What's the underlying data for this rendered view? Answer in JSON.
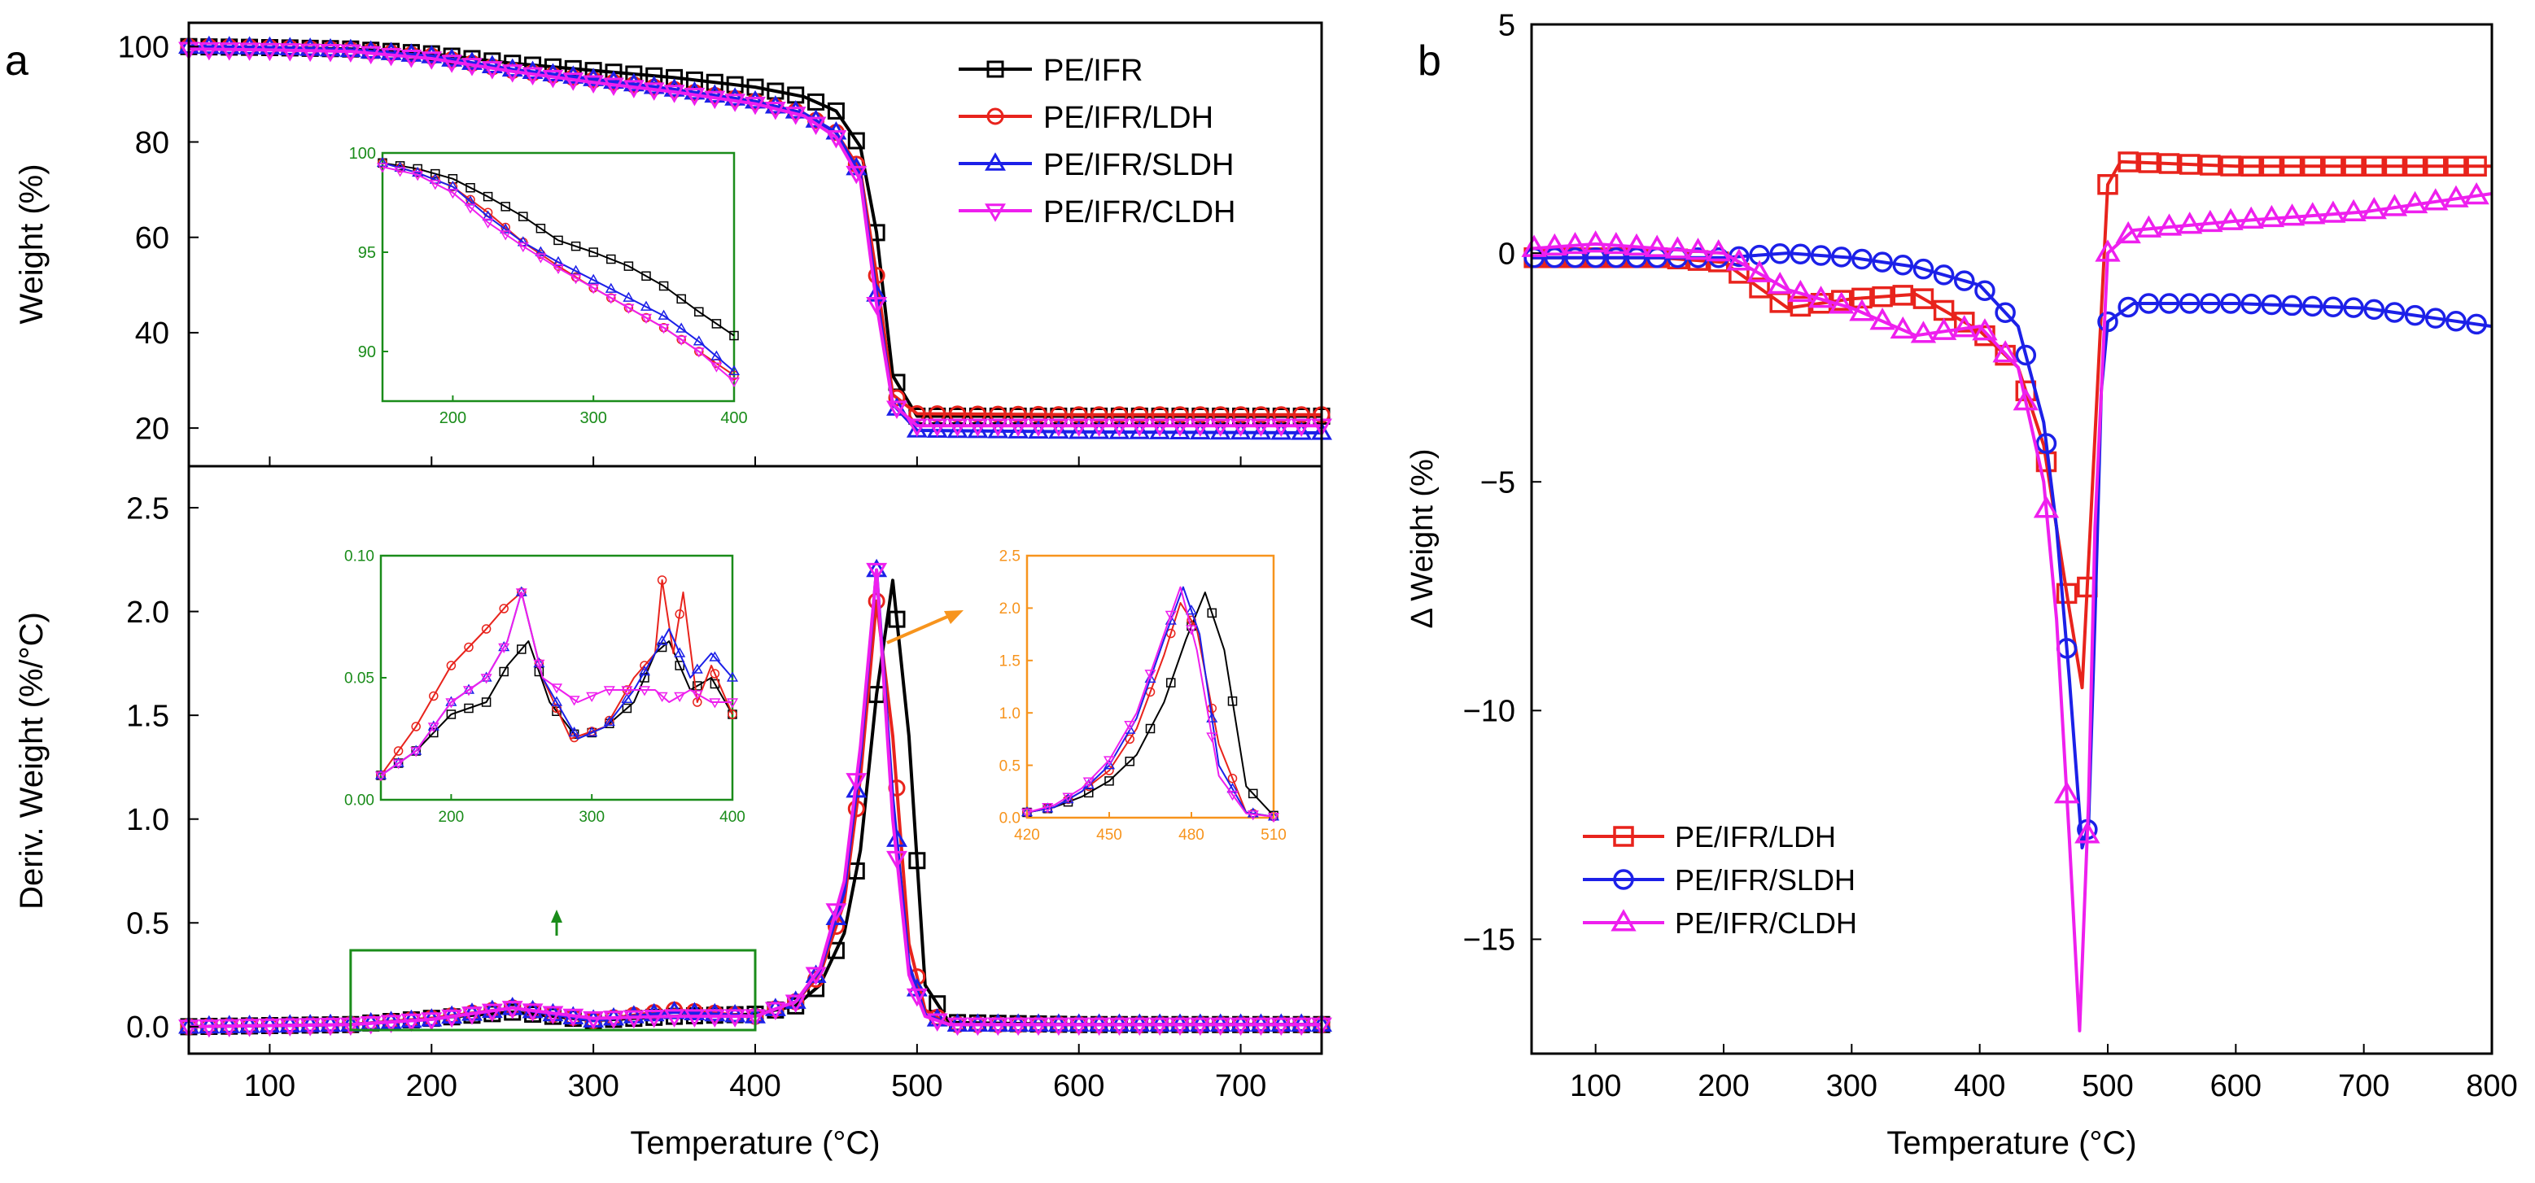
{
  "figure": {
    "panel_a_letter": "a",
    "panel_b_letter": "b",
    "colors": {
      "PE/IFR": "#000000",
      "PE/IFR/LDH": "#e8231c",
      "PE/IFR/SLDH": "#1c20e8",
      "PE/IFR/CLDH": "#ee1fee",
      "inset_green": "#1a8c1a",
      "inset_orange": "#f7941d"
    }
  },
  "chart_data": [
    {
      "id": "a_top",
      "type": "line",
      "title": "",
      "xlabel": "Temperature (°C)",
      "ylabel": "Weight (%)",
      "xlim": [
        50,
        750
      ],
      "ylim": [
        12,
        105
      ],
      "yticks": [
        "20",
        "40",
        "60",
        "80",
        "100"
      ],
      "legend": [
        "PE/IFR",
        "PE/IFR/LDH",
        "PE/IFR/SLDH",
        "PE/IFR/CLDH"
      ],
      "legend_position": "top-right",
      "series": [
        {
          "name": "PE/IFR",
          "marker": "square",
          "x": [
            50,
            100,
            150,
            200,
            250,
            300,
            350,
            400,
            430,
            450,
            465,
            475,
            485,
            500,
            600,
            750
          ],
          "y": [
            100,
            99.8,
            99.5,
            98.5,
            96.5,
            95,
            93.5,
            91.5,
            89.5,
            86.5,
            79,
            61,
            31,
            22.5,
            22.5,
            22.5
          ]
        },
        {
          "name": "PE/IFR/LDH",
          "marker": "circle",
          "x": [
            50,
            100,
            150,
            200,
            250,
            300,
            350,
            400,
            430,
            450,
            465,
            475,
            485,
            500,
            600,
            750
          ],
          "y": [
            100,
            99.8,
            99.3,
            98,
            95,
            93,
            91,
            88.5,
            86,
            82,
            74,
            52,
            27,
            23,
            22.8,
            22.8
          ]
        },
        {
          "name": "PE/IFR/SLDH",
          "marker": "triangle-up",
          "x": [
            50,
            100,
            150,
            200,
            250,
            300,
            350,
            400,
            430,
            450,
            465,
            475,
            485,
            500,
            600,
            750
          ],
          "y": [
            100,
            99.8,
            99.3,
            98,
            95.2,
            93.2,
            91,
            88.5,
            86,
            82,
            73,
            48,
            25,
            19.5,
            19.2,
            19
          ]
        },
        {
          "name": "PE/IFR/CLDH",
          "marker": "triangle-down",
          "x": [
            50,
            100,
            150,
            200,
            250,
            300,
            350,
            400,
            430,
            450,
            465,
            475,
            485,
            500,
            600,
            750
          ],
          "y": [
            99.5,
            99.3,
            99,
            97.5,
            94.8,
            92.5,
            90.5,
            88,
            85.5,
            81,
            72,
            46,
            25,
            20.5,
            20.5,
            20.5
          ]
        }
      ],
      "inset": {
        "xlim": [
          150,
          400
        ],
        "ylim": [
          87.5,
          100
        ],
        "xticks": [
          "200",
          "300",
          "400"
        ],
        "yticks": [
          "90",
          "95",
          "100"
        ],
        "series": [
          {
            "name": "PE/IFR",
            "x": [
              150,
              175,
              200,
              225,
              250,
              275,
              300,
              325,
              350,
              375,
              400
            ],
            "y": [
              99.5,
              99.2,
              98.7,
              97.8,
              96.8,
              95.6,
              95,
              94.3,
              93.3,
              92,
              90.8
            ]
          },
          {
            "name": "PE/IFR/LDH",
            "x": [
              150,
              175,
              200,
              225,
              250,
              275,
              300,
              325,
              350,
              375,
              400
            ],
            "y": [
              99.5,
              99,
              98.3,
              97,
              95.5,
              94.3,
              93.2,
              92.2,
              91.2,
              90,
              88.8
            ]
          },
          {
            "name": "PE/IFR/SLDH",
            "x": [
              150,
              175,
              200,
              225,
              250,
              275,
              300,
              325,
              350,
              375,
              400
            ],
            "y": [
              99.5,
              99,
              98.3,
              96.8,
              95.5,
              94.5,
              93.6,
              92.7,
              91.8,
              90.5,
              89
            ]
          },
          {
            "name": "PE/IFR/CLDH",
            "x": [
              150,
              175,
              200,
              225,
              250,
              275,
              300,
              325,
              350,
              375,
              400
            ],
            "y": [
              99.3,
              98.9,
              98,
              96.5,
              95.3,
              94.2,
              93.2,
              92.2,
              91.2,
              90,
              88.5
            ]
          }
        ]
      }
    },
    {
      "id": "a_bottom",
      "type": "line",
      "title": "",
      "xlabel": "Temperature (°C)",
      "ylabel": "Deriv. Weight (%/°C)",
      "xlim": [
        50,
        750
      ],
      "ylim": [
        -0.13,
        2.7
      ],
      "xticks": [
        "100",
        "200",
        "300",
        "400",
        "500",
        "600",
        "700"
      ],
      "yticks": [
        "0.0",
        "0.5",
        "1.0",
        "1.5",
        "2.0",
        "2.5"
      ],
      "highlight_box_x": [
        150,
        400
      ],
      "series": [
        {
          "name": "PE/IFR",
          "marker": "square",
          "x": [
            50,
            150,
            200,
            250,
            300,
            350,
            400,
            425,
            440,
            455,
            465,
            475,
            485,
            495,
            505,
            520,
            600,
            750
          ],
          "y": [
            0,
            0.01,
            0.04,
            0.07,
            0.03,
            0.05,
            0.06,
            0.1,
            0.2,
            0.45,
            0.85,
            1.6,
            2.15,
            1.4,
            0.2,
            0.02,
            0.01,
            0.01
          ]
        },
        {
          "name": "PE/IFR/LDH",
          "marker": "circle",
          "x": [
            50,
            150,
            200,
            250,
            300,
            350,
            400,
            425,
            440,
            455,
            465,
            475,
            485,
            495,
            505,
            520,
            600,
            750
          ],
          "y": [
            0,
            0.01,
            0.04,
            0.09,
            0.03,
            0.08,
            0.05,
            0.12,
            0.25,
            0.6,
            1.2,
            2.05,
            1.4,
            0.4,
            0.08,
            0.01,
            0.01,
            0.01
          ]
        },
        {
          "name": "PE/IFR/SLDH",
          "marker": "triangle-up",
          "x": [
            50,
            150,
            200,
            250,
            300,
            350,
            400,
            425,
            440,
            455,
            465,
            475,
            485,
            495,
            505,
            520,
            600,
            750
          ],
          "y": [
            0,
            0.01,
            0.035,
            0.09,
            0.03,
            0.07,
            0.05,
            0.12,
            0.27,
            0.65,
            1.3,
            2.2,
            1.1,
            0.3,
            0.06,
            0.01,
            0.01,
            0.01
          ]
        },
        {
          "name": "PE/IFR/CLDH",
          "marker": "triangle-down",
          "x": [
            50,
            150,
            200,
            250,
            300,
            350,
            400,
            425,
            440,
            455,
            465,
            475,
            485,
            495,
            505,
            520,
            600,
            750
          ],
          "y": [
            0,
            0.01,
            0.035,
            0.09,
            0.04,
            0.05,
            0.05,
            0.12,
            0.28,
            0.7,
            1.35,
            2.2,
            1.0,
            0.25,
            0.05,
            0.01,
            0.01,
            0.01
          ]
        }
      ],
      "inset_left": {
        "xlim": [
          150,
          400
        ],
        "ylim": [
          0,
          0.1
        ],
        "xticks": [
          "200",
          "300",
          "400"
        ],
        "yticks": [
          "0.00",
          "0.05",
          "0.10"
        ],
        "series": [
          {
            "name": "PE/IFR",
            "x": [
              150,
              175,
              200,
              225,
              240,
              255,
              270,
              290,
              310,
              330,
              345,
              355,
              370,
              385,
              400
            ],
            "y": [
              0.01,
              0.02,
              0.035,
              0.04,
              0.055,
              0.065,
              0.04,
              0.025,
              0.03,
              0.04,
              0.06,
              0.065,
              0.045,
              0.05,
              0.035
            ]
          },
          {
            "name": "PE/IFR/LDH",
            "x": [
              150,
              175,
              200,
              225,
              240,
              250,
              265,
              285,
              310,
              330,
              345,
              350,
              358,
              365,
              375,
              385,
              400
            ],
            "y": [
              0.01,
              0.03,
              0.055,
              0.07,
              0.08,
              0.085,
              0.05,
              0.025,
              0.03,
              0.05,
              0.06,
              0.09,
              0.06,
              0.085,
              0.04,
              0.055,
              0.035
            ]
          },
          {
            "name": "PE/IFR/SLDH",
            "x": [
              150,
              175,
              200,
              225,
              240,
              250,
              265,
              290,
              310,
              330,
              345,
              355,
              370,
              385,
              400
            ],
            "y": [
              0.01,
              0.02,
              0.04,
              0.05,
              0.065,
              0.085,
              0.05,
              0.025,
              0.03,
              0.045,
              0.06,
              0.07,
              0.05,
              0.06,
              0.05
            ]
          },
          {
            "name": "PE/IFR/CLDH",
            "x": [
              150,
              175,
              200,
              225,
              240,
              250,
              265,
              290,
              310,
              330,
              345,
              355,
              370,
              385,
              400
            ],
            "y": [
              0.01,
              0.02,
              0.04,
              0.05,
              0.065,
              0.085,
              0.05,
              0.04,
              0.045,
              0.045,
              0.045,
              0.04,
              0.045,
              0.04,
              0.04
            ]
          }
        ]
      },
      "inset_right": {
        "xlim": [
          420,
          510
        ],
        "ylim": [
          0,
          2.5
        ],
        "xticks": [
          "420",
          "450",
          "480",
          "510"
        ],
        "yticks": [
          "0.0",
          "0.5",
          "1.0",
          "1.5",
          "2.0",
          "2.5"
        ],
        "series": [
          {
            "name": "PE/IFR",
            "x": [
              420,
              430,
              440,
              450,
              460,
              470,
              478,
              485,
              492,
              500,
              510
            ],
            "y": [
              0.05,
              0.1,
              0.2,
              0.35,
              0.6,
              1.1,
              1.7,
              2.15,
              1.6,
              0.3,
              0.02
            ]
          },
          {
            "name": "PE/IFR/LDH",
            "x": [
              420,
              430,
              440,
              450,
              460,
              470,
              476,
              482,
              490,
              500,
              510
            ],
            "y": [
              0.05,
              0.1,
              0.25,
              0.45,
              0.85,
              1.55,
              2.05,
              1.8,
              0.7,
              0.05,
              0.01
            ]
          },
          {
            "name": "PE/IFR/SLDH",
            "x": [
              420,
              430,
              440,
              450,
              460,
              470,
              477,
              483,
              490,
              500,
              510
            ],
            "y": [
              0.05,
              0.1,
              0.25,
              0.5,
              0.95,
              1.7,
              2.2,
              1.75,
              0.5,
              0.05,
              0.01
            ]
          },
          {
            "name": "PE/IFR/CLDH",
            "x": [
              420,
              430,
              440,
              450,
              460,
              470,
              476,
              482,
              490,
              500,
              510
            ],
            "y": [
              0.05,
              0.12,
              0.28,
              0.55,
              1.0,
              1.75,
              2.2,
              1.6,
              0.4,
              0.04,
              0.01
            ]
          }
        ]
      }
    },
    {
      "id": "b",
      "type": "line",
      "title": "",
      "xlabel": "Temperature (°C)",
      "ylabel": "Δ Weight (%)",
      "xlim": [
        50,
        800
      ],
      "ylim": [
        -17.5,
        5
      ],
      "xticks": [
        "100",
        "200",
        "300",
        "400",
        "500",
        "600",
        "700",
        "800"
      ],
      "yticks": [
        "5",
        "0",
        "−5",
        "−10",
        "−15"
      ],
      "legend": [
        "PE/IFR/LDH",
        "PE/IFR/SLDH",
        "PE/IFR/CLDH"
      ],
      "legend_position": "bottom-left",
      "series": [
        {
          "name": "PE/IFR/LDH",
          "marker": "square",
          "x": [
            50,
            150,
            200,
            250,
            300,
            350,
            400,
            430,
            450,
            460,
            470,
            480,
            490,
            500,
            510,
            600,
            700,
            800
          ],
          "y": [
            -0.1,
            -0.1,
            -0.2,
            -1.2,
            -1,
            -0.9,
            -1.7,
            -2.5,
            -4.2,
            -6,
            -7.8,
            -9.5,
            -4,
            1.5,
            2,
            1.9,
            1.9,
            1.9
          ]
        },
        {
          "name": "PE/IFR/SLDH",
          "marker": "circle",
          "x": [
            50,
            150,
            200,
            250,
            300,
            350,
            400,
            430,
            450,
            460,
            470,
            480,
            485,
            490,
            495,
            500,
            520,
            600,
            700,
            800
          ],
          "y": [
            -0.1,
            -0.1,
            -0.1,
            0,
            -0.1,
            -0.3,
            -0.7,
            -1.6,
            -3.7,
            -6,
            -9.3,
            -13,
            -12.5,
            -8,
            -3,
            -1.5,
            -1.1,
            -1.1,
            -1.2,
            -1.6
          ]
        },
        {
          "name": "PE/IFR/CLDH",
          "marker": "triangle-up",
          "x": [
            50,
            100,
            150,
            200,
            250,
            300,
            350,
            400,
            430,
            450,
            460,
            470,
            478,
            485,
            490,
            500,
            520,
            600,
            700,
            800
          ],
          "y": [
            0.1,
            0.2,
            0.1,
            0,
            -0.8,
            -1.2,
            -1.8,
            -1.6,
            -2.5,
            -5,
            -8,
            -12.8,
            -17,
            -12,
            -6,
            0,
            0.5,
            0.7,
            0.9,
            1.3
          ]
        }
      ]
    }
  ]
}
